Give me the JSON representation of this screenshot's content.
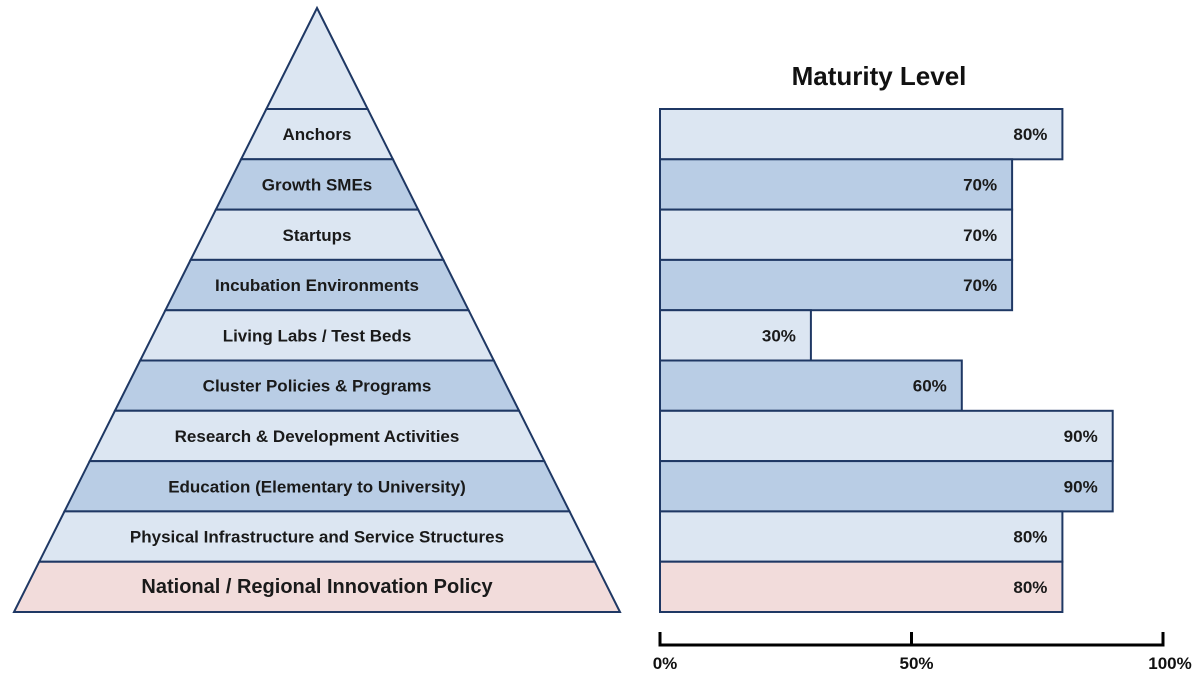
{
  "chart_data": {
    "type": "bar",
    "orientation": "horizontal",
    "title": "Maturity Level",
    "categories": [
      "Anchors",
      "Growth SMEs",
      "Startups",
      "Incubation Environments",
      "Living Labs / Test Beds",
      "Cluster Policies & Programs",
      "Research & Development Activities",
      "Education (Elementary to University)",
      "Physical Infrastructure and Service Structures",
      "National / Regional Innovation Policy"
    ],
    "values": [
      80,
      70,
      70,
      70,
      30,
      60,
      90,
      90,
      80,
      80
    ],
    "value_labels": [
      "80%",
      "70%",
      "70%",
      "70%",
      "30%",
      "60%",
      "90%",
      "90%",
      "80%",
      "80%"
    ],
    "xlim": [
      0,
      100
    ],
    "x_ticks": [
      0,
      50,
      100
    ],
    "x_tick_labels": [
      "0%",
      "50%",
      "100%"
    ],
    "grid": false,
    "legend": "none",
    "colors": {
      "light": "#dce6f2",
      "medium": "#b9cde5",
      "base": "#f2dcdb",
      "stroke": "#1f3864"
    },
    "row_shading": [
      "light",
      "medium",
      "light",
      "medium",
      "light",
      "medium",
      "light",
      "medium",
      "light",
      "base"
    ]
  }
}
